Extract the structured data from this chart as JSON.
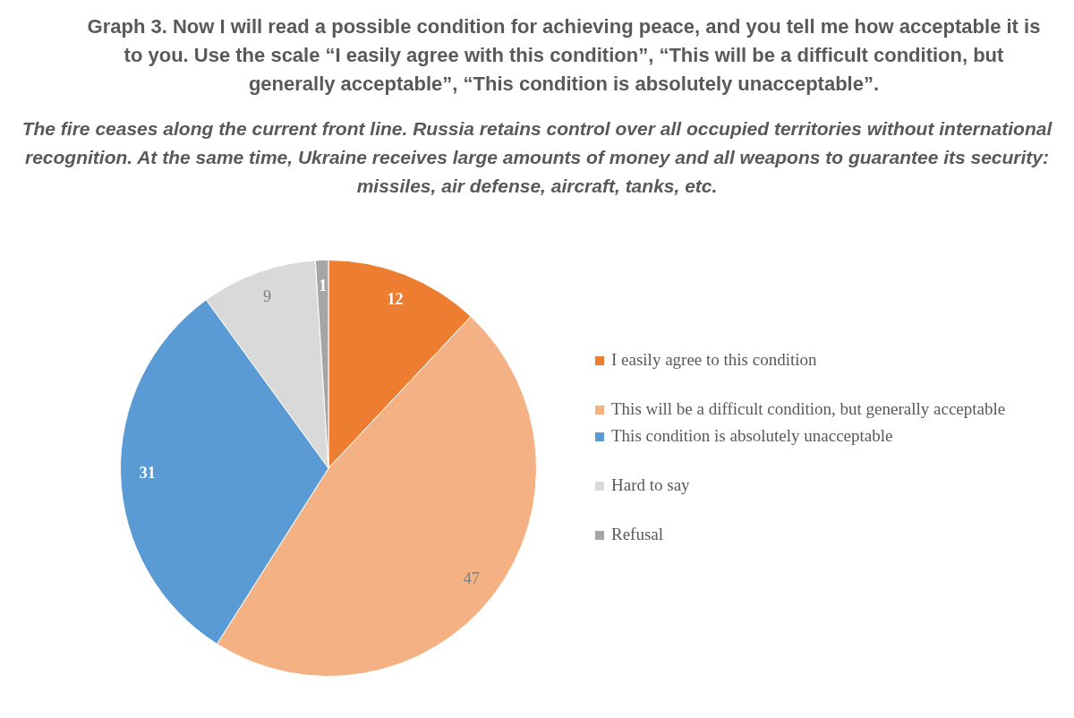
{
  "chart_data": {
    "type": "pie",
    "title": "Graph 3. Now I will read a possible condition for achieving peace, and you tell me how acceptable it is to you. Use the scale “I easily agree with this condition”, “This will be a difficult condition, but generally acceptable”, “This condition is absolutely unacceptable”.",
    "subtitle": "The fire ceases along the current front line. Russia retains control over all occupied territories without international recognition. At the same time, Ukraine receives large amounts of money and all weapons to guarantee its security: missiles, air defense, aircraft, tanks, etc.",
    "categories": [
      "I easily agree to this condition",
      "This will be a difficult condition, but generally acceptable",
      "This condition is absolutely unacceptable",
      "Hard to say",
      "Refusal"
    ],
    "values": [
      12,
      47,
      31,
      9,
      1
    ],
    "colors": [
      "#ed7d31",
      "#f4b183",
      "#5b9bd5",
      "#d9d9d9",
      "#a5a5a5"
    ],
    "data_labels": true,
    "legend": "right"
  }
}
